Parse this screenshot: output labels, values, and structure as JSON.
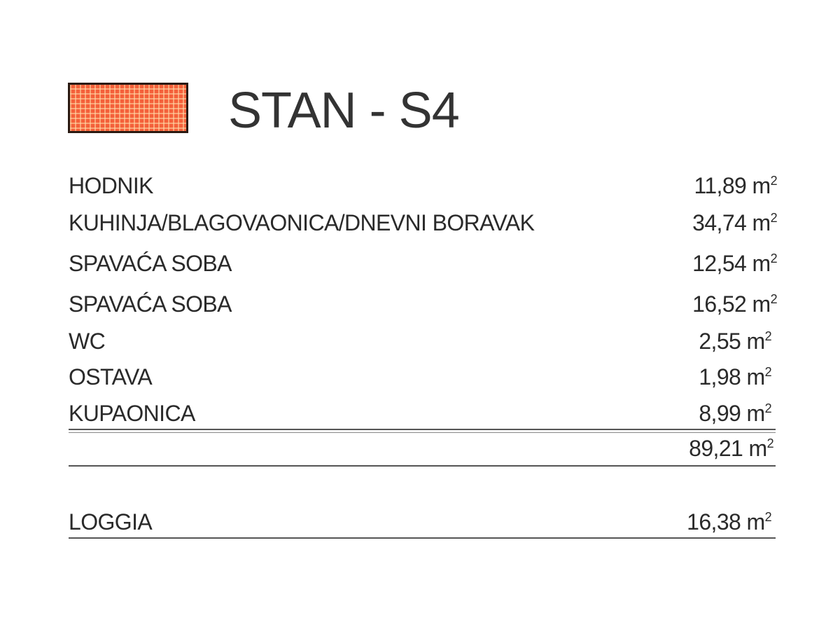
{
  "header": {
    "title": "STAN - S4",
    "swatch_color": "#f4603a"
  },
  "rooms": [
    {
      "name": "HODNIK",
      "area": "11,89 m",
      "unit_sup": "2"
    },
    {
      "name": "KUHINJA/BLAGOVAONICA/DNEVNI BORAVAK",
      "area": "34,74 m",
      "unit_sup": "2"
    },
    {
      "name": "SPAVAĆA SOBA",
      "area": "12,54 m",
      "unit_sup": "2"
    },
    {
      "name": "SPAVAĆA SOBA",
      "area": "16,52 m",
      "unit_sup": "2"
    },
    {
      "name": "WC",
      "area": "2,55 m",
      "unit_sup": "2"
    },
    {
      "name": "OSTAVA",
      "area": "1,98 m",
      "unit_sup": "2"
    },
    {
      "name": "KUPAONICA",
      "area": "8,99 m",
      "unit_sup": "2"
    }
  ],
  "total": {
    "area": "89,21 m",
    "unit_sup": "2"
  },
  "loggia": {
    "name": "LOGGIA",
    "area": "16,38 m",
    "unit_sup": "2"
  }
}
